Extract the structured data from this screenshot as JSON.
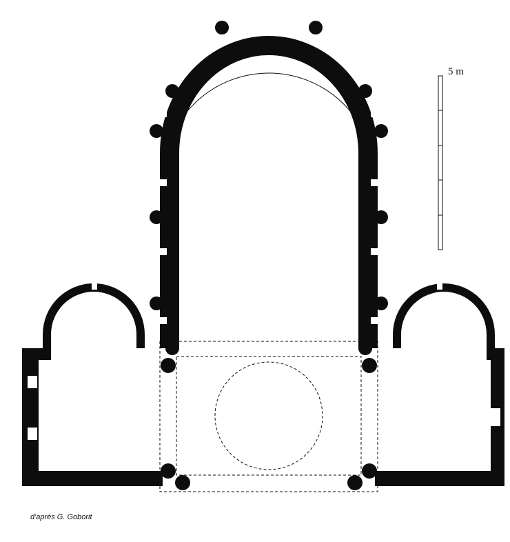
{
  "figure": {
    "credit": "d'après G. Goborit",
    "scale_bar": {
      "label": "5 m",
      "length_m": 5
    }
  },
  "colors": {
    "ink": "#0d0d0d",
    "paper": "#ffffff"
  }
}
